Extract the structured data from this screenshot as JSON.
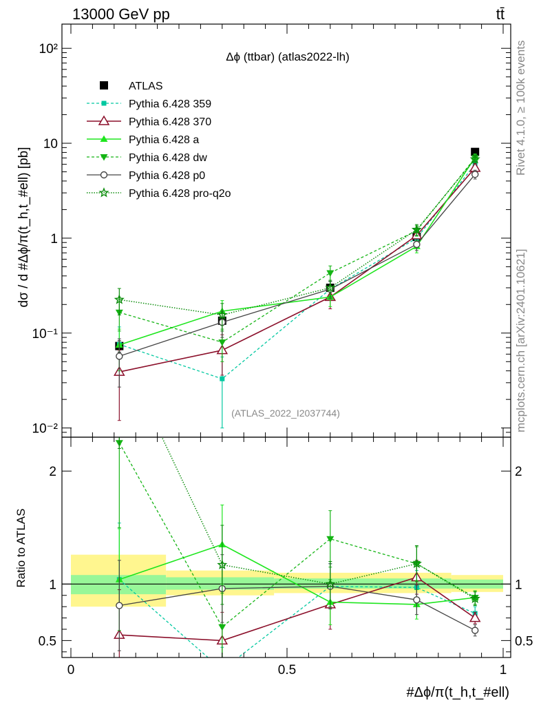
{
  "header": {
    "left": "13000 GeV pp",
    "right": "tt̄"
  },
  "side_labels": {
    "rivet": "Rivet 4.1.0, ≥ 100k events",
    "mcplots": "mcplots.cern.ch [arXiv:2401.10621]"
  },
  "colors": {
    "atlas": "#000000",
    "p359": "#00c8a0",
    "p370": "#8b0f2a",
    "pa": "#1ee61e",
    "pdw": "#14b414",
    "pp0": "#444444",
    "pq2o": "#0a8c0a",
    "band_yellow": "#fff68f",
    "band_green": "#98f798"
  },
  "chart_data": [
    {
      "type": "line",
      "panel": "main",
      "title": "Δϕ (ttbar) (atlas2022-lh)",
      "ylabel": "dσ / d #Δϕ/π(t_h,t_#ell) [pb]",
      "watermark": "(ATLAS_2022_I2037744)",
      "yscale": "log",
      "xlim": [
        0,
        1
      ],
      "ylim": [
        0.008,
        180
      ],
      "y_ticks": [
        "10⁻²",
        "10⁻¹",
        "1",
        "10",
        "10²"
      ],
      "x_bins": [
        0.112,
        0.35,
        0.6,
        0.8,
        0.935
      ],
      "series": [
        {
          "name": "ATLAS",
          "values": [
            0.073,
            0.135,
            0.3,
            1.03,
            8.1
          ],
          "errors": [
            0.01,
            0.012,
            0.025,
            0.08,
            0.45
          ]
        },
        {
          "name": "Pythia 6.428 359",
          "values": [
            0.076,
            0.033,
            0.29,
            1.0,
            6.0
          ],
          "errors": [
            0.04,
            0.023,
            0.06,
            0.15,
            0.6
          ]
        },
        {
          "name": "Pythia 6.428 370",
          "values": [
            0.039,
            0.066,
            0.24,
            1.07,
            5.5
          ],
          "errors": [
            0.027,
            0.03,
            0.06,
            0.15,
            0.6
          ]
        },
        {
          "name": "Pythia 6.428 a",
          "values": [
            0.075,
            0.17,
            0.24,
            0.82,
            7.1
          ],
          "errors": [
            0.035,
            0.05,
            0.05,
            0.12,
            0.6
          ]
        },
        {
          "name": "Pythia 6.428 dw",
          "values": [
            0.165,
            0.08,
            0.43,
            1.2,
            7.0
          ],
          "errors": [
            0.06,
            0.03,
            0.08,
            0.15,
            0.6
          ]
        },
        {
          "name": "Pythia 6.428 p0",
          "values": [
            0.057,
            0.13,
            0.29,
            0.86,
            4.7
          ],
          "errors": [
            0.03,
            0.04,
            0.06,
            0.12,
            0.5
          ]
        },
        {
          "name": "Pythia 6.428 pro-q2o",
          "values": [
            0.225,
            0.155,
            0.3,
            1.23,
            6.8
          ],
          "errors": [
            0.07,
            0.05,
            0.06,
            0.16,
            0.6
          ]
        }
      ]
    },
    {
      "type": "line",
      "panel": "ratio",
      "ylabel": "Ratio to ATLAS",
      "xlabel": "#Δϕ/π(t_h,t_#ell)",
      "xlim": [
        0,
        1
      ],
      "ylim": [
        0.35,
        2.3
      ],
      "x_ticks": [
        "0",
        "0.5",
        "1"
      ],
      "y_ticks": [
        "0.5",
        "1",
        "2"
      ],
      "x_bins": [
        0.112,
        0.35,
        0.6,
        0.8,
        0.935
      ],
      "uncertainty_bands": [
        {
          "x": [
            0.0,
            0.22
          ],
          "stat": [
            0.91,
            1.08
          ],
          "total": [
            0.8,
            1.26
          ]
        },
        {
          "x": [
            0.22,
            0.47
          ],
          "stat": [
            0.95,
            1.06
          ],
          "total": [
            0.9,
            1.12
          ]
        },
        {
          "x": [
            0.47,
            0.88
          ],
          "stat": [
            0.96,
            1.05
          ],
          "total": [
            0.92,
            1.1
          ]
        },
        {
          "x": [
            0.88,
            1.0
          ],
          "stat": [
            0.96,
            1.04
          ],
          "total": [
            0.93,
            1.08
          ]
        }
      ],
      "series": [
        {
          "name": "Pythia 6.428 359",
          "values": [
            1.04,
            0.24,
            0.98,
            0.97,
            0.74
          ],
          "errors": [
            0.5,
            0.2,
            0.2,
            0.15,
            0.06
          ]
        },
        {
          "name": "Pythia 6.428 370",
          "values": [
            0.55,
            0.5,
            0.82,
            1.06,
            0.7
          ],
          "errors": [
            0.4,
            0.25,
            0.22,
            0.15,
            0.05
          ]
        },
        {
          "name": "Pythia 6.428 a",
          "values": [
            1.04,
            1.35,
            0.84,
            0.82,
            0.88
          ],
          "errors": [
            0.45,
            0.35,
            0.2,
            0.13,
            0.06
          ]
        },
        {
          "name": "Pythia 6.428 dw",
          "values": [
            2.25,
            0.62,
            1.4,
            1.18,
            0.88
          ],
          "errors": [
            0.75,
            0.3,
            0.25,
            0.15,
            0.06
          ]
        },
        {
          "name": "Pythia 6.428 p0",
          "values": [
            0.81,
            0.96,
            0.98,
            0.86,
            0.59
          ],
          "errors": [
            0.4,
            0.3,
            0.2,
            0.13,
            0.05
          ]
        },
        {
          "name": "Pythia 6.428 pro-q2o",
          "values": [
            3.1,
            1.17,
            1.0,
            1.18,
            0.87
          ],
          "errors": [
            0.9,
            0.35,
            0.2,
            0.16,
            0.06
          ]
        }
      ]
    }
  ]
}
